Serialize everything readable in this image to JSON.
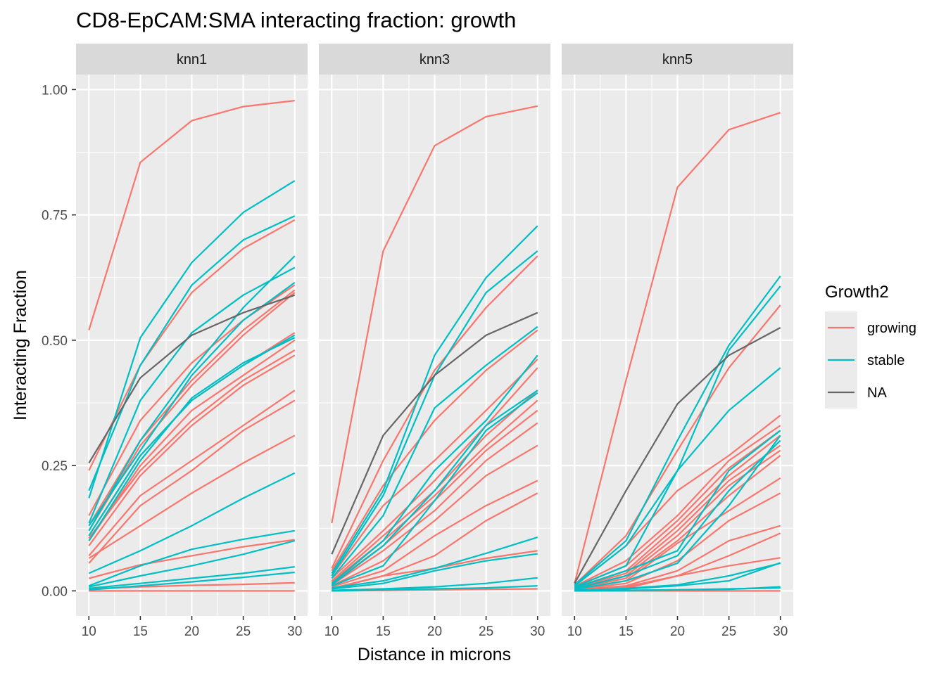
{
  "chart_data": {
    "type": "line",
    "title": "CD8-EpCAM:SMA interacting fraction: growth",
    "xlabel": "Distance in microns",
    "ylabel": "Interacting Fraction",
    "x": [
      10,
      15,
      20,
      25,
      30
    ],
    "x_ticks": [
      "10",
      "15",
      "20",
      "25",
      "30"
    ],
    "ylim": [
      -0.05,
      1.03
    ],
    "y_ticks": [
      {
        "value": 0.0,
        "label": "0.00"
      },
      {
        "value": 0.25,
        "label": "0.25"
      },
      {
        "value": 0.5,
        "label": "0.50"
      },
      {
        "value": 0.75,
        "label": "0.75"
      },
      {
        "value": 1.0,
        "label": "1.00"
      }
    ],
    "grid": true,
    "legend": {
      "title": "Growth2",
      "placement": "right",
      "entries": [
        {
          "key": "growing",
          "label": "growing",
          "color": "#F8766D"
        },
        {
          "key": "stable",
          "label": "stable",
          "color": "#00BFC4"
        },
        {
          "key": "NA",
          "label": "NA",
          "color": "#666666"
        }
      ]
    },
    "panels": [
      {
        "label": "knn1",
        "series": [
          {
            "group": "growing",
            "values": [
              0.52,
              0.855,
              0.938,
              0.966,
              0.978
            ]
          },
          {
            "group": "growing",
            "values": [
              0.24,
              0.45,
              0.595,
              0.683,
              0.74
            ]
          },
          {
            "group": "growing",
            "values": [
              0.15,
              0.34,
              0.455,
              0.54,
              0.61
            ]
          },
          {
            "group": "growing",
            "values": [
              0.13,
              0.3,
              0.42,
              0.52,
              0.6
            ]
          },
          {
            "group": "growing",
            "values": [
              0.12,
              0.29,
              0.41,
              0.51,
              0.595
            ]
          },
          {
            "group": "growing",
            "values": [
              0.11,
              0.27,
              0.38,
              0.45,
              0.515
            ]
          },
          {
            "group": "growing",
            "values": [
              0.1,
              0.25,
              0.36,
              0.43,
              0.5
            ]
          },
          {
            "group": "growing",
            "values": [
              0.105,
              0.24,
              0.34,
              0.42,
              0.48
            ]
          },
          {
            "group": "growing",
            "values": [
              0.09,
              0.23,
              0.33,
              0.41,
              0.47
            ]
          },
          {
            "group": "growing",
            "values": [
              0.07,
              0.19,
              0.26,
              0.33,
              0.4
            ]
          },
          {
            "group": "growing",
            "values": [
              0.055,
              0.17,
              0.24,
              0.32,
              0.38
            ]
          },
          {
            "group": "growing",
            "values": [
              0.065,
              0.13,
              0.195,
              0.255,
              0.31
            ]
          },
          {
            "group": "growing",
            "values": [
              0.025,
              0.052,
              0.07,
              0.088,
              0.102
            ]
          },
          {
            "group": "growing",
            "values": [
              0.004,
              0.008,
              0.011,
              0.013,
              0.016
            ]
          },
          {
            "group": "growing",
            "values": [
              0.0,
              0.0,
              0.0,
              0.0,
              0.0
            ]
          },
          {
            "group": "stable",
            "values": [
              0.185,
              0.505,
              0.655,
              0.755,
              0.818
            ]
          },
          {
            "group": "stable",
            "values": [
              0.2,
              0.45,
              0.61,
              0.7,
              0.748
            ]
          },
          {
            "group": "stable",
            "values": [
              0.135,
              0.38,
              0.515,
              0.59,
              0.645
            ]
          },
          {
            "group": "stable",
            "values": [
              0.12,
              0.3,
              0.44,
              0.565,
              0.668
            ]
          },
          {
            "group": "stable",
            "values": [
              0.13,
              0.28,
              0.43,
              0.54,
              0.615
            ]
          },
          {
            "group": "stable",
            "values": [
              0.1,
              0.26,
              0.385,
              0.455,
              0.505
            ]
          },
          {
            "group": "stable",
            "values": [
              0.11,
              0.27,
              0.38,
              0.45,
              0.51
            ]
          },
          {
            "group": "stable",
            "values": [
              0.035,
              0.08,
              0.13,
              0.185,
              0.235
            ]
          },
          {
            "group": "stable",
            "values": [
              0.01,
              0.05,
              0.083,
              0.103,
              0.12
            ]
          },
          {
            "group": "stable",
            "values": [
              0.008,
              0.03,
              0.05,
              0.073,
              0.1
            ]
          },
          {
            "group": "stable",
            "values": [
              0.005,
              0.015,
              0.025,
              0.035,
              0.048
            ]
          },
          {
            "group": "stable",
            "values": [
              0.002,
              0.01,
              0.018,
              0.027,
              0.037
            ]
          },
          {
            "group": "NA",
            "values": [
              0.255,
              0.425,
              0.51,
              0.555,
              0.59
            ]
          }
        ]
      },
      {
        "label": "knn3",
        "series": [
          {
            "group": "growing",
            "values": [
              0.135,
              0.678,
              0.888,
              0.946,
              0.967
            ]
          },
          {
            "group": "growing",
            "values": [
              0.045,
              0.26,
              0.44,
              0.565,
              0.668
            ]
          },
          {
            "group": "growing",
            "values": [
              0.04,
              0.21,
              0.34,
              0.44,
              0.52
            ]
          },
          {
            "group": "growing",
            "values": [
              0.03,
              0.17,
              0.26,
              0.36,
              0.462
            ]
          },
          {
            "group": "growing",
            "values": [
              0.025,
              0.12,
              0.22,
              0.33,
              0.445
            ]
          },
          {
            "group": "growing",
            "values": [
              0.02,
              0.11,
              0.2,
              0.31,
              0.4
            ]
          },
          {
            "group": "growing",
            "values": [
              0.018,
              0.1,
              0.19,
              0.29,
              0.38
            ]
          },
          {
            "group": "growing",
            "values": [
              0.015,
              0.09,
              0.18,
              0.28,
              0.36
            ]
          },
          {
            "group": "growing",
            "values": [
              0.012,
              0.08,
              0.16,
              0.26,
              0.335
            ]
          },
          {
            "group": "growing",
            "values": [
              0.01,
              0.06,
              0.14,
              0.23,
              0.29
            ]
          },
          {
            "group": "growing",
            "values": [
              0.008,
              0.04,
              0.11,
              0.17,
              0.22
            ]
          },
          {
            "group": "growing",
            "values": [
              0.005,
              0.03,
              0.07,
              0.14,
              0.195
            ]
          },
          {
            "group": "growing",
            "values": [
              0.004,
              0.03,
              0.045,
              0.065,
              0.08
            ]
          },
          {
            "group": "growing",
            "values": [
              0.0,
              0.001,
              0.002,
              0.003,
              0.004
            ]
          },
          {
            "group": "stable",
            "values": [
              0.035,
              0.2,
              0.47,
              0.625,
              0.728
            ]
          },
          {
            "group": "stable",
            "values": [
              0.03,
              0.19,
              0.43,
              0.595,
              0.678
            ]
          },
          {
            "group": "stable",
            "values": [
              0.025,
              0.15,
              0.365,
              0.45,
              0.527
            ]
          },
          {
            "group": "stable",
            "values": [
              0.015,
              0.1,
              0.24,
              0.34,
              0.47
            ]
          },
          {
            "group": "stable",
            "values": [
              0.012,
              0.09,
              0.2,
              0.33,
              0.4
            ]
          },
          {
            "group": "stable",
            "values": [
              0.01,
              0.05,
              0.18,
              0.32,
              0.395
            ]
          },
          {
            "group": "stable",
            "values": [
              0.006,
              0.02,
              0.045,
              0.075,
              0.107
            ]
          },
          {
            "group": "stable",
            "values": [
              0.004,
              0.015,
              0.04,
              0.06,
              0.074
            ]
          },
          {
            "group": "stable",
            "values": [
              0.001,
              0.004,
              0.008,
              0.015,
              0.026
            ]
          },
          {
            "group": "stable",
            "values": [
              0.0,
              0.002,
              0.004,
              0.006,
              0.01
            ]
          },
          {
            "group": "NA",
            "values": [
              0.073,
              0.31,
              0.43,
              0.51,
              0.555
            ]
          }
        ]
      },
      {
        "label": "knn5",
        "series": [
          {
            "group": "growing",
            "values": [
              0.015,
              0.42,
              0.805,
              0.92,
              0.954
            ]
          },
          {
            "group": "growing",
            "values": [
              0.012,
              0.11,
              0.28,
              0.445,
              0.57
            ]
          },
          {
            "group": "growing",
            "values": [
              0.01,
              0.09,
              0.2,
              0.27,
              0.35
            ]
          },
          {
            "group": "growing",
            "values": [
              0.009,
              0.06,
              0.15,
              0.26,
              0.33
            ]
          },
          {
            "group": "growing",
            "values": [
              0.008,
              0.05,
              0.14,
              0.245,
              0.32
            ]
          },
          {
            "group": "growing",
            "values": [
              0.007,
              0.04,
              0.13,
              0.23,
              0.31
            ]
          },
          {
            "group": "growing",
            "values": [
              0.006,
              0.035,
              0.12,
              0.22,
              0.29
            ]
          },
          {
            "group": "growing",
            "values": [
              0.005,
              0.03,
              0.11,
              0.21,
              0.28
            ]
          },
          {
            "group": "growing",
            "values": [
              0.005,
              0.025,
              0.1,
              0.19,
              0.27
            ]
          },
          {
            "group": "growing",
            "values": [
              0.004,
              0.02,
              0.095,
              0.16,
              0.225
            ]
          },
          {
            "group": "growing",
            "values": [
              0.003,
              0.015,
              0.06,
              0.14,
              0.195
            ]
          },
          {
            "group": "growing",
            "values": [
              0.002,
              0.01,
              0.04,
              0.1,
              0.13
            ]
          },
          {
            "group": "growing",
            "values": [
              0.002,
              0.008,
              0.03,
              0.07,
              0.115
            ]
          },
          {
            "group": "growing",
            "values": [
              0.001,
              0.005,
              0.03,
              0.05,
              0.066
            ]
          },
          {
            "group": "growing",
            "values": [
              0.0,
              0.0,
              0.0,
              0.0,
              0.0
            ]
          },
          {
            "group": "stable",
            "values": [
              0.012,
              0.1,
              0.3,
              0.49,
              0.628
            ]
          },
          {
            "group": "stable",
            "values": [
              0.01,
              0.09,
              0.24,
              0.48,
              0.608
            ]
          },
          {
            "group": "stable",
            "values": [
              0.008,
              0.05,
              0.24,
              0.36,
              0.445
            ]
          },
          {
            "group": "stable",
            "values": [
              0.006,
              0.04,
              0.08,
              0.24,
              0.32
            ]
          },
          {
            "group": "stable",
            "values": [
              0.004,
              0.03,
              0.07,
              0.2,
              0.3
            ]
          },
          {
            "group": "stable",
            "values": [
              0.003,
              0.02,
              0.055,
              0.17,
              0.31
            ]
          },
          {
            "group": "stable",
            "values": [
              0.001,
              0.005,
              0.012,
              0.03,
              0.055
            ]
          },
          {
            "group": "stable",
            "values": [
              0.001,
              0.004,
              0.01,
              0.02,
              0.056
            ]
          },
          {
            "group": "stable",
            "values": [
              0.0,
              0.001,
              0.002,
              0.004,
              0.006
            ]
          },
          {
            "group": "stable",
            "values": [
              0.0,
              0.001,
              0.002,
              0.003,
              0.008
            ]
          },
          {
            "group": "NA",
            "values": [
              0.015,
              0.2,
              0.373,
              0.47,
              0.525
            ]
          }
        ]
      }
    ]
  }
}
